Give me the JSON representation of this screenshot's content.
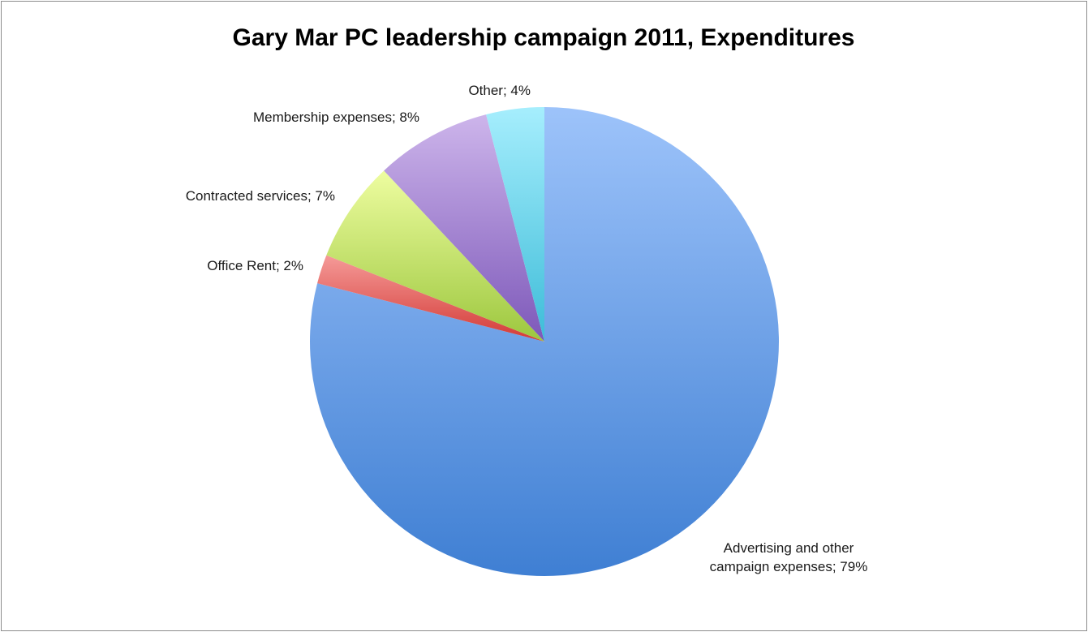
{
  "chart_data": {
    "type": "pie",
    "title": "Gary Mar PC leadership campaign 2011, Expenditures",
    "start_angle_deg": 0,
    "direction": "clockwise",
    "slices": [
      {
        "label": "Advertising and other campaign expenses; 79%",
        "label_lines": [
          "Advertising and other",
          "campaign expenses; 79%"
        ],
        "category": "Advertising and other campaign expenses",
        "value": 79,
        "color_light": "#9DC3FA",
        "color_dark": "#3F7FD3"
      },
      {
        "label": "Office Rent; 2%",
        "label_lines": [
          "Office Rent; 2%"
        ],
        "category": "Office Rent",
        "value": 2,
        "color_light": "#F59A98",
        "color_dark": "#D33A36"
      },
      {
        "label": "Contracted services; 7%",
        "label_lines": [
          "Contracted services; 7%"
        ],
        "category": "Contracted services",
        "value": 7,
        "color_light": "#EEFDA0",
        "color_dark": "#9CC73E"
      },
      {
        "label": "Membership expenses; 8%",
        "label_lines": [
          "Membership expenses; 8%"
        ],
        "category": "Membership expenses",
        "value": 8,
        "color_light": "#CDB5EB",
        "color_dark": "#7D58B9"
      },
      {
        "label": "Other; 4%",
        "label_lines": [
          "Other; 4%"
        ],
        "category": "Other",
        "value": 4,
        "color_light": "#A6EEFD",
        "color_dark": "#3DBCD8"
      }
    ]
  }
}
